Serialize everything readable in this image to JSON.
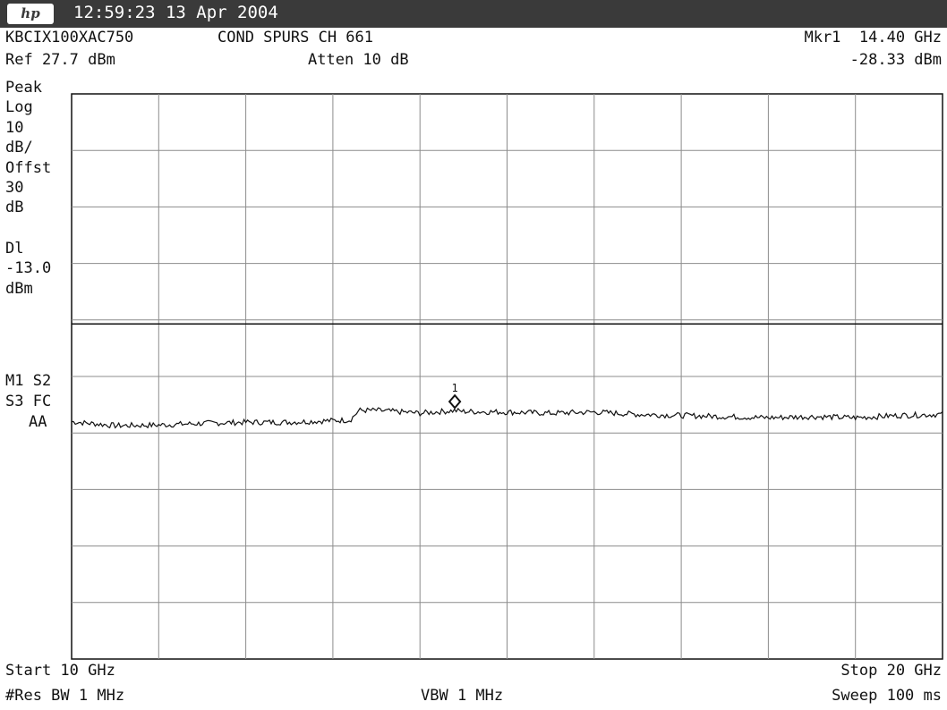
{
  "header": {
    "logo_text": "hp",
    "time": "12:59:23",
    "date": "13 Apr 2004",
    "device_id": "KBCIX100XAC750",
    "test_name": "COND SPURS CH 661",
    "ref_level": "Ref 27.7 dBm",
    "atten": "Atten 10 dB",
    "marker_label": "Mkr1  14.40 GHz",
    "marker_value": "-28.33 dBm"
  },
  "side_labels": {
    "detector": "Peak",
    "scale_type": "Log",
    "scale_value": "10",
    "scale_unit": "dB/",
    "offset_label": "Offst",
    "offset_value": "30",
    "offset_unit": "dB",
    "display_line_label": "Dl",
    "display_line_value": "-13.0",
    "display_line_unit": "dBm",
    "mode_line1": "M1 S2",
    "mode_line2": "S3 FC",
    "mode_line3": "AA"
  },
  "footer": {
    "start": "Start 10 GHz",
    "stop": "Stop 20 GHz",
    "res_bw": "#Res BW 1 MHz",
    "vbw": "VBW 1 MHz",
    "sweep": "Sweep 100 ms"
  },
  "colors": {
    "titlebar": "#3a3a3a",
    "grid": "#8c8c8c",
    "trace": "#111111"
  },
  "chart_data": {
    "type": "line",
    "title": "COND SPURS CH 661",
    "x_unit": "GHz",
    "y_unit": "dBm",
    "xlim": [
      10,
      20
    ],
    "ylim": [
      -72.3,
      27.7
    ],
    "scale": "log 10 dB/div",
    "grid": true,
    "display_line": -13.0,
    "marker": {
      "label": "1",
      "x": 14.4,
      "y": -28.33
    },
    "series": [
      {
        "x": [
          10.0,
          10.5,
          11.0,
          11.5,
          12.0,
          12.5,
          13.0,
          13.2,
          13.3,
          13.5,
          14.0,
          14.4,
          14.5,
          15.0,
          15.5,
          16.0,
          16.5,
          17.0,
          17.5,
          18.0,
          18.5,
          19.0,
          19.5,
          20.0
        ],
        "values": [
          -30.3,
          -31.0,
          -30.9,
          -30.6,
          -30.4,
          -30.4,
          -30.1,
          -30.0,
          -28.3,
          -28.3,
          -28.8,
          -28.33,
          -28.5,
          -28.6,
          -28.8,
          -28.6,
          -29.0,
          -29.2,
          -29.4,
          -29.6,
          -29.4,
          -29.6,
          -29.2,
          -29.0
        ]
      }
    ]
  }
}
